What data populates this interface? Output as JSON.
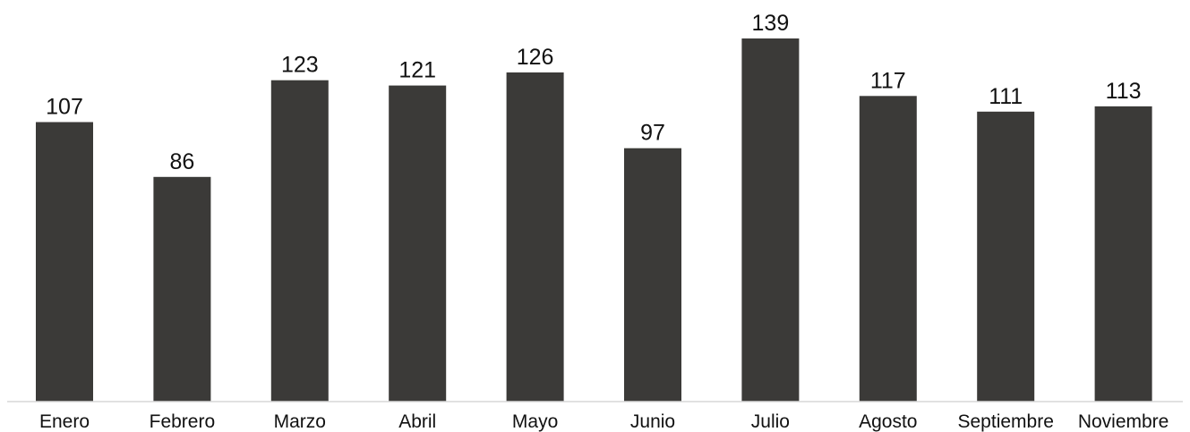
{
  "chart_data": {
    "type": "bar",
    "categories": [
      "Enero",
      "Febrero",
      "Marzo",
      "Abril",
      "Mayo",
      "Junio",
      "Julio",
      "Agosto",
      "Septiembre",
      "Noviembre"
    ],
    "values": [
      107,
      86,
      123,
      121,
      126,
      97,
      139,
      117,
      111,
      113
    ],
    "title": "",
    "xlabel": "",
    "ylabel": "",
    "ylim": [
      0,
      139
    ],
    "grid": false,
    "legend": "none",
    "bar_color": "#3b3a38",
    "data_labels": true
  }
}
